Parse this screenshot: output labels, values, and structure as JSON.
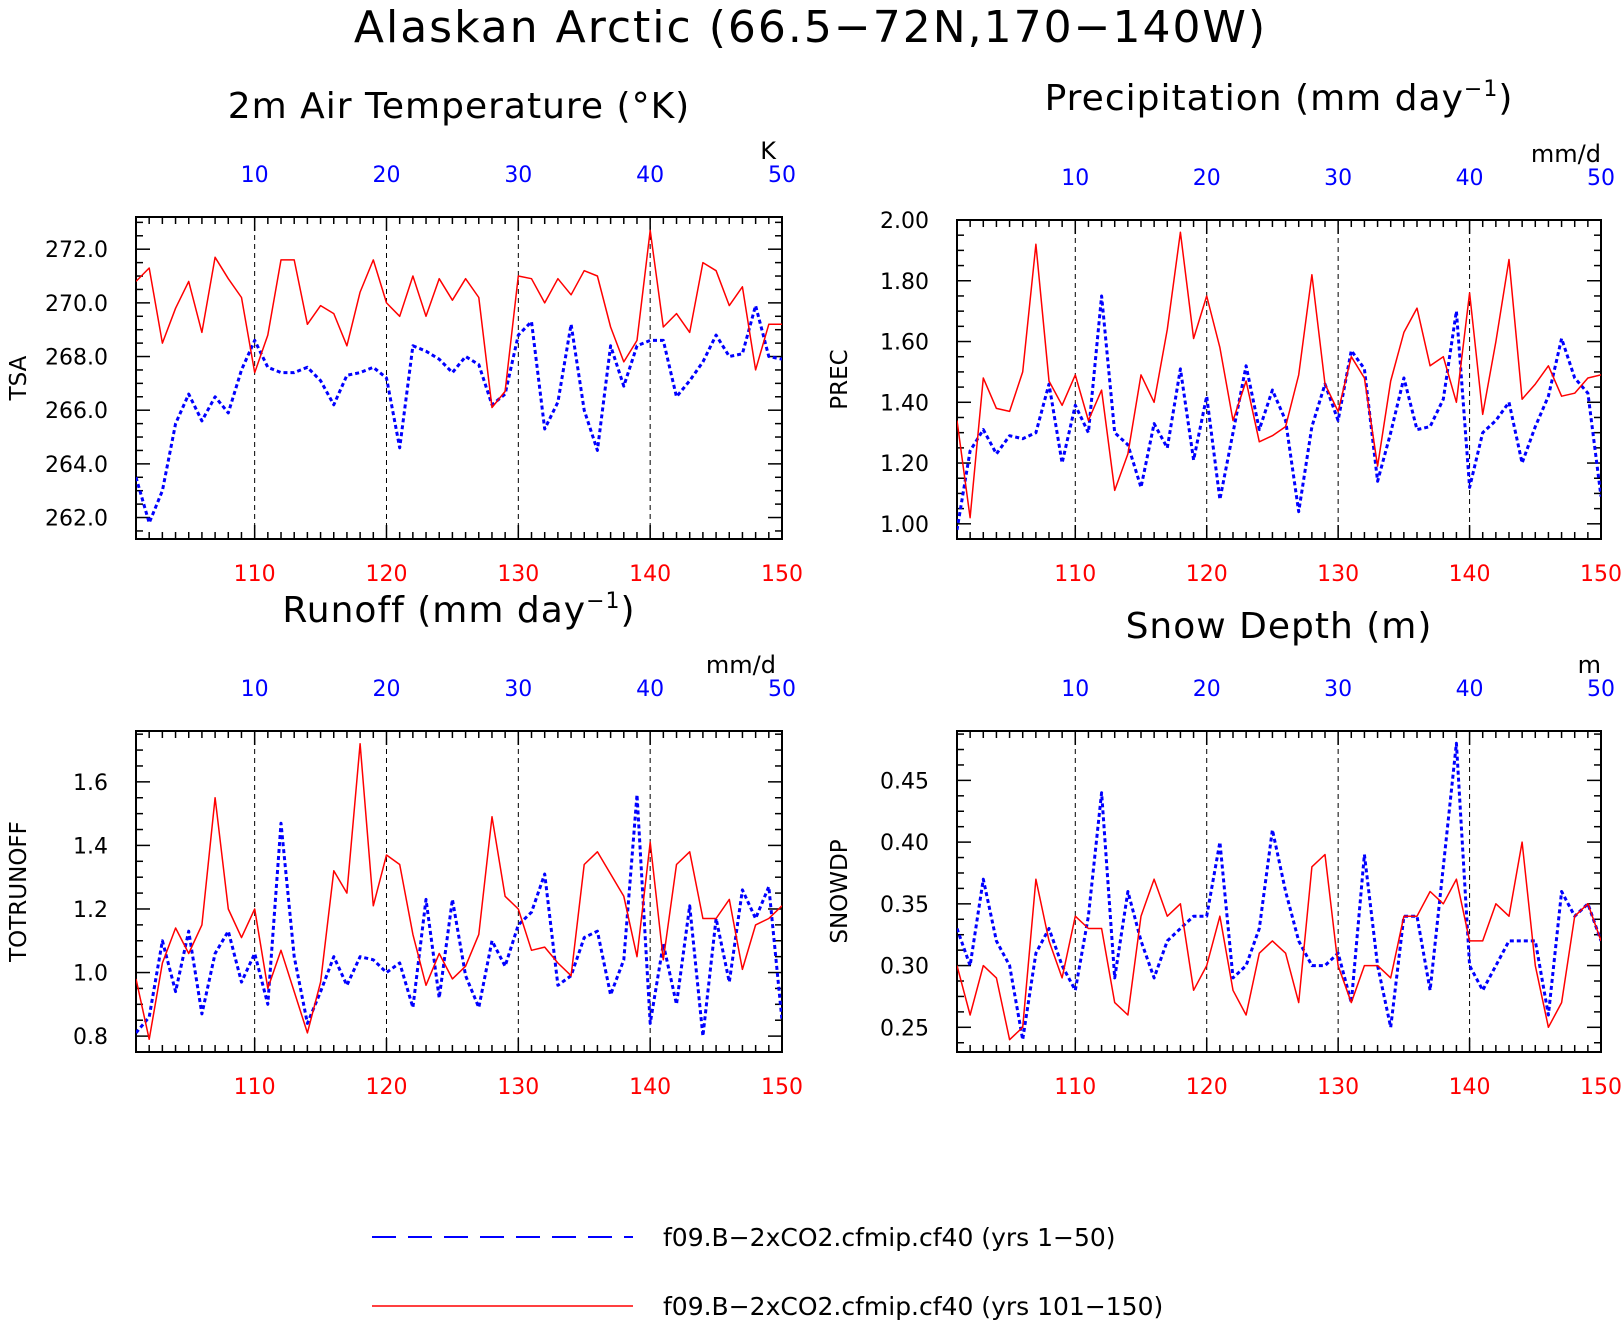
{
  "figure_title": "Alaskan Arctic (66.5−72N,170−140W)",
  "colors": {
    "blue_series": "#0000ff",
    "red_series": "#ff0000",
    "axis": "#000000"
  },
  "legend": [
    {
      "label": "f09.B−2xCO2.cfmip.cf40 (yrs 1−50)",
      "color": "#0000ff",
      "style": "dashed"
    },
    {
      "label": "f09.B−2xCO2.cfmip.cf40 (yrs 101−150)",
      "color": "#ff0000",
      "style": "solid"
    }
  ],
  "chart_data": [
    {
      "type": "line",
      "title": "2m Air Temperature (°K)",
      "title_unit_exp": "",
      "ylabel": "TSA",
      "units": "K",
      "ylim": [
        261.2,
        273.2
      ],
      "yticks": [
        262,
        264,
        266,
        268,
        270,
        272
      ],
      "ytick_decimals": 1,
      "x_bottom": {
        "range": [
          101,
          150
        ],
        "ticks": [
          110,
          120,
          130,
          140,
          150
        ]
      },
      "x_top": {
        "range": [
          1,
          50
        ],
        "ticks": [
          10,
          20,
          30,
          40,
          50
        ]
      },
      "series": [
        {
          "name": "f09.B−2xCO2.cfmip.cf40 (yrs 1−50)",
          "color": "#0000ff",
          "style": "dashed",
          "axis": "top",
          "values": [
            263.5,
            261.8,
            263.0,
            265.5,
            266.6,
            265.6,
            266.5,
            265.9,
            267.5,
            268.6,
            267.6,
            267.4,
            267.4,
            267.6,
            267.1,
            266.2,
            267.3,
            267.4,
            267.6,
            267.2,
            264.6,
            268.4,
            268.2,
            267.9,
            267.4,
            268.0,
            267.7,
            266.2,
            266.6,
            268.8,
            269.3,
            265.3,
            266.3,
            269.2,
            266.0,
            264.5,
            268.4,
            266.9,
            268.4,
            268.6,
            268.6,
            266.5,
            267.1,
            267.8,
            268.8,
            268.0,
            268.1,
            269.9,
            268.0,
            267.9
          ]
        },
        {
          "name": "f09.B−2xCO2.cfmip.cf40 (yrs 101−150)",
          "color": "#ff0000",
          "style": "solid",
          "axis": "bottom",
          "values": [
            270.8,
            271.3,
            268.5,
            269.8,
            270.8,
            268.9,
            271.7,
            270.9,
            270.2,
            267.4,
            268.8,
            271.6,
            271.6,
            269.2,
            269.9,
            269.6,
            268.4,
            270.4,
            271.6,
            270.0,
            269.5,
            271.0,
            269.5,
            270.9,
            270.1,
            270.9,
            270.2,
            266.1,
            266.7,
            271.0,
            270.9,
            270.0,
            270.9,
            270.3,
            271.2,
            271.0,
            269.1,
            267.8,
            268.6,
            272.7,
            269.1,
            269.6,
            268.9,
            271.5,
            271.2,
            269.9,
            270.6,
            267.5,
            269.2,
            269.2
          ]
        }
      ]
    },
    {
      "type": "line",
      "title": "Precipitation (mm day",
      "title_unit_exp": "−1",
      "ylabel": "PREC",
      "units": "mm/d",
      "ylim": [
        0.95,
        2.0
      ],
      "yticks": [
        1.0,
        1.2,
        1.4,
        1.6,
        1.8,
        2.0
      ],
      "ytick_decimals": 2,
      "x_bottom": {
        "range": [
          101,
          150
        ],
        "ticks": [
          110,
          120,
          130,
          140,
          150
        ]
      },
      "x_top": {
        "range": [
          1,
          50
        ],
        "ticks": [
          10,
          20,
          30,
          40,
          50
        ]
      },
      "series": [
        {
          "name": "f09.B−2xCO2.cfmip.cf40 (yrs 1−50)",
          "color": "#0000ff",
          "style": "dashed",
          "axis": "top",
          "values": [
            0.98,
            1.24,
            1.31,
            1.23,
            1.29,
            1.28,
            1.3,
            1.46,
            1.2,
            1.39,
            1.3,
            1.75,
            1.3,
            1.26,
            1.12,
            1.33,
            1.25,
            1.51,
            1.21,
            1.42,
            1.08,
            1.3,
            1.52,
            1.31,
            1.44,
            1.34,
            1.04,
            1.32,
            1.46,
            1.34,
            1.57,
            1.51,
            1.14,
            1.3,
            1.48,
            1.31,
            1.32,
            1.41,
            1.7,
            1.12,
            1.3,
            1.34,
            1.4,
            1.2,
            1.32,
            1.42,
            1.61,
            1.48,
            1.43,
            1.09
          ]
        },
        {
          "name": "f09.B−2xCO2.cfmip.cf40 (yrs 101−150)",
          "color": "#ff0000",
          "style": "solid",
          "axis": "bottom",
          "values": [
            1.34,
            1.02,
            1.48,
            1.38,
            1.37,
            1.5,
            1.92,
            1.47,
            1.39,
            1.49,
            1.34,
            1.44,
            1.11,
            1.23,
            1.49,
            1.4,
            1.64,
            1.96,
            1.61,
            1.75,
            1.58,
            1.34,
            1.47,
            1.27,
            1.29,
            1.32,
            1.49,
            1.82,
            1.46,
            1.37,
            1.55,
            1.48,
            1.19,
            1.47,
            1.63,
            1.71,
            1.52,
            1.55,
            1.4,
            1.76,
            1.36,
            1.6,
            1.87,
            1.41,
            1.46,
            1.52,
            1.42,
            1.43,
            1.48,
            1.49
          ]
        }
      ]
    },
    {
      "type": "line",
      "title": "Runoff (mm day",
      "title_unit_exp": "−1",
      "ylabel": "TOTRUNOFF",
      "units": "mm/d",
      "ylim": [
        0.75,
        1.76
      ],
      "yticks": [
        0.8,
        1.0,
        1.2,
        1.4,
        1.6
      ],
      "ytick_decimals": 1,
      "x_bottom": {
        "range": [
          101,
          150
        ],
        "ticks": [
          110,
          120,
          130,
          140,
          150
        ]
      },
      "x_top": {
        "range": [
          1,
          50
        ],
        "ticks": [
          10,
          20,
          30,
          40,
          50
        ]
      },
      "series": [
        {
          "name": "f09.B−2xCO2.cfmip.cf40 (yrs 1−50)",
          "color": "#0000ff",
          "style": "dashed",
          "axis": "top",
          "values": [
            0.81,
            0.86,
            1.1,
            0.94,
            1.13,
            0.87,
            1.06,
            1.13,
            0.97,
            1.06,
            0.9,
            1.47,
            1.05,
            0.84,
            0.94,
            1.05,
            0.96,
            1.05,
            1.04,
            1.0,
            1.03,
            0.89,
            1.23,
            0.92,
            1.23,
            0.99,
            0.89,
            1.1,
            1.02,
            1.15,
            1.19,
            1.31,
            0.96,
            0.99,
            1.11,
            1.13,
            0.93,
            1.04,
            1.56,
            0.84,
            1.09,
            0.9,
            1.21,
            0.8,
            1.17,
            0.97,
            1.26,
            1.17,
            1.27,
            0.85
          ]
        },
        {
          "name": "f09.B−2xCO2.cfmip.cf40 (yrs 101−150)",
          "color": "#ff0000",
          "style": "solid",
          "axis": "bottom",
          "values": [
            0.98,
            0.79,
            1.03,
            1.14,
            1.06,
            1.15,
            1.55,
            1.2,
            1.11,
            1.2,
            0.95,
            1.07,
            0.94,
            0.81,
            0.97,
            1.32,
            1.25,
            1.72,
            1.21,
            1.37,
            1.34,
            1.12,
            0.96,
            1.06,
            0.98,
            1.02,
            1.12,
            1.49,
            1.24,
            1.2,
            1.07,
            1.08,
            1.03,
            0.99,
            1.34,
            1.38,
            1.31,
            1.24,
            1.05,
            1.41,
            1.04,
            1.34,
            1.38,
            1.17,
            1.17,
            1.23,
            1.01,
            1.15,
            1.17,
            1.21
          ]
        }
      ]
    },
    {
      "type": "line",
      "title": "Snow Depth (m)",
      "title_unit_exp": "",
      "ylabel": "SNOWDP",
      "units": "m",
      "ylim": [
        0.23,
        0.49
      ],
      "yticks": [
        0.25,
        0.3,
        0.35,
        0.4,
        0.45
      ],
      "ytick_decimals": 2,
      "x_bottom": {
        "range": [
          101,
          150
        ],
        "ticks": [
          110,
          120,
          130,
          140,
          150
        ]
      },
      "x_top": {
        "range": [
          1,
          50
        ],
        "ticks": [
          10,
          20,
          30,
          40,
          50
        ]
      },
      "series": [
        {
          "name": "f09.B−2xCO2.cfmip.cf40 (yrs 1−50)",
          "color": "#0000ff",
          "style": "dashed",
          "axis": "top",
          "values": [
            0.33,
            0.3,
            0.37,
            0.32,
            0.3,
            0.24,
            0.31,
            0.33,
            0.3,
            0.28,
            0.34,
            0.44,
            0.29,
            0.36,
            0.32,
            0.29,
            0.32,
            0.33,
            0.34,
            0.34,
            0.4,
            0.29,
            0.3,
            0.33,
            0.41,
            0.36,
            0.32,
            0.3,
            0.3,
            0.31,
            0.27,
            0.39,
            0.3,
            0.25,
            0.34,
            0.34,
            0.28,
            0.38,
            0.48,
            0.3,
            0.28,
            0.3,
            0.32,
            0.32,
            0.32,
            0.26,
            0.36,
            0.34,
            0.35,
            0.32
          ]
        },
        {
          "name": "f09.B−2xCO2.cfmip.cf40 (yrs 101−150)",
          "color": "#ff0000",
          "style": "solid",
          "axis": "bottom",
          "values": [
            0.3,
            0.26,
            0.3,
            0.29,
            0.24,
            0.25,
            0.37,
            0.32,
            0.29,
            0.34,
            0.33,
            0.33,
            0.27,
            0.26,
            0.34,
            0.37,
            0.34,
            0.35,
            0.28,
            0.3,
            0.34,
            0.28,
            0.26,
            0.31,
            0.32,
            0.31,
            0.27,
            0.38,
            0.39,
            0.3,
            0.27,
            0.3,
            0.3,
            0.29,
            0.34,
            0.34,
            0.36,
            0.35,
            0.37,
            0.32,
            0.32,
            0.35,
            0.34,
            0.4,
            0.3,
            0.25,
            0.27,
            0.34,
            0.35,
            0.32
          ]
        }
      ]
    }
  ]
}
